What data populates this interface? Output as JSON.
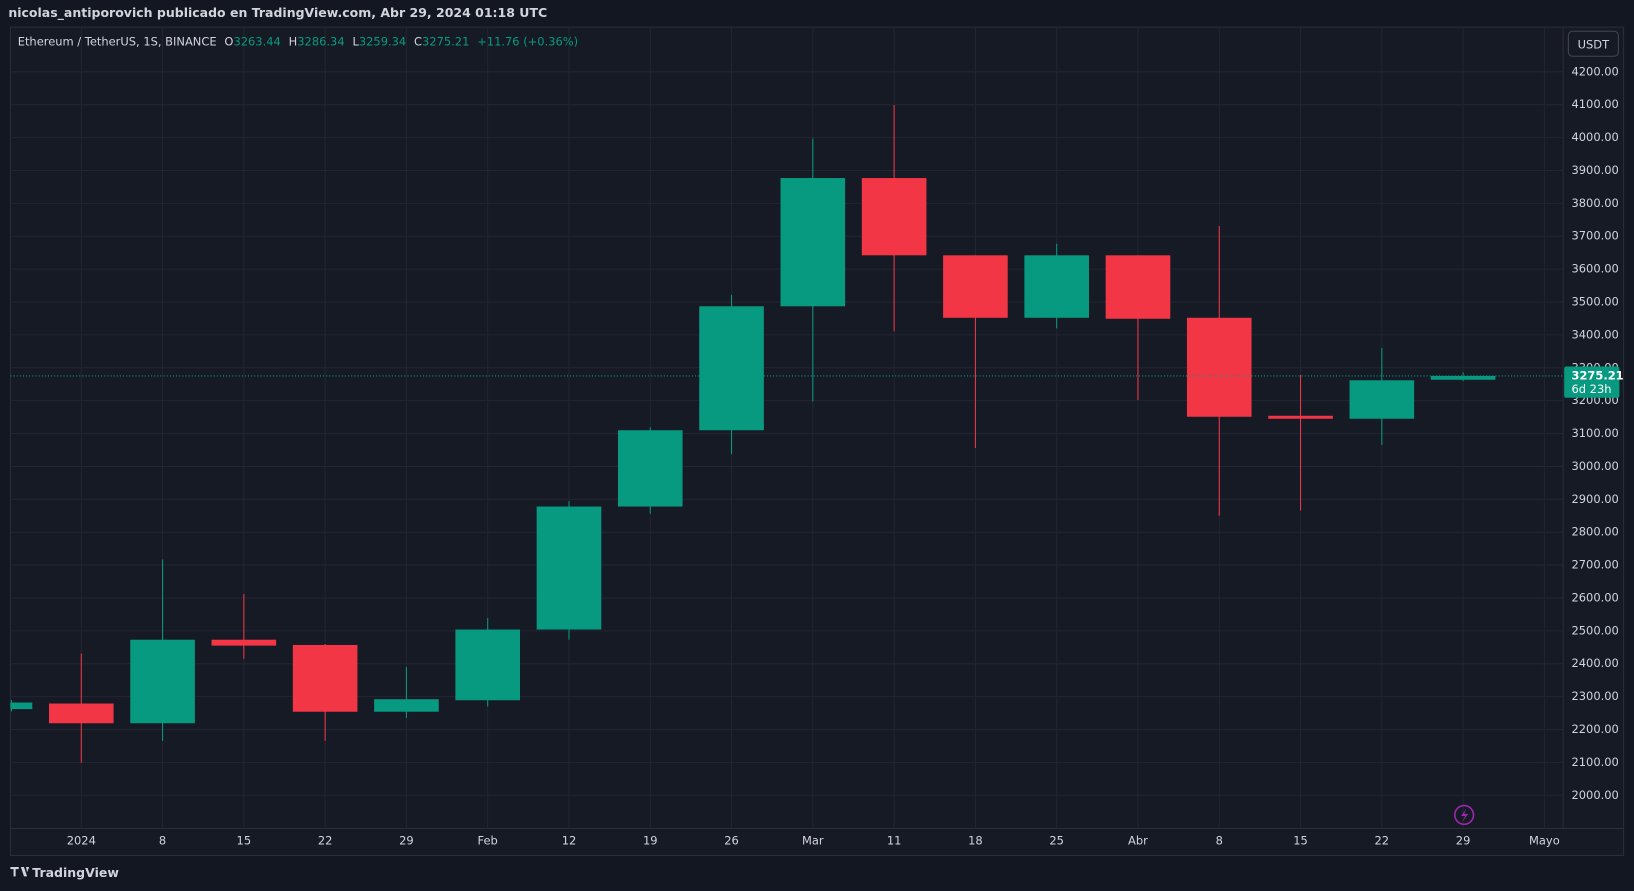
{
  "publisher_line": "nicolas_antiporovich publicado en TradingView.com, Abr 29, 2024 01:18 UTC",
  "brand": "TradingView",
  "chart_data": {
    "type": "candlestick",
    "title": "Ethereum / TetherUS, 1S, BINANCE",
    "legend": {
      "open_label": "O",
      "open": 3263.44,
      "high_label": "H",
      "high": 3286.34,
      "low_label": "L",
      "low": 3259.34,
      "close_label": "C",
      "close": 3275.21,
      "change": "+11.76 (+0.36%)"
    },
    "currency": "USDT",
    "last_price": 3275.21,
    "countdown": "6d 23h",
    "categories": [
      null,
      "2024",
      "8",
      "15",
      "22",
      "29",
      "Feb",
      "12",
      "19",
      "26",
      "Mar",
      "11",
      "18",
      "25",
      "Abr",
      "8",
      "15",
      "22",
      "29",
      "Mayo"
    ],
    "open": [
      2262,
      2279,
      2219,
      2473,
      2457,
      2254,
      2289,
      2504,
      2878,
      3110,
      3487,
      3877,
      3642,
      3452,
      3642,
      3452,
      3154,
      3145,
      3263.44,
      null
    ],
    "high": [
      2290,
      2431,
      2717,
      2612,
      2460,
      2390,
      2539,
      2894,
      3119,
      3522,
      3997,
      4099,
      3642,
      3677,
      3642,
      3731,
      3278,
      3360,
      3286.34,
      null
    ],
    "low": [
      2255,
      2099,
      2165,
      2415,
      2165,
      2235,
      2270,
      2473,
      2856,
      3037,
      3198,
      3411,
      3056,
      3420,
      3202,
      2850,
      2866,
      3065,
      3259.34,
      null
    ],
    "close": [
      2282,
      2219,
      2473,
      2455,
      2254,
      2292,
      2504,
      2878,
      3110,
      3487,
      3877,
      3642,
      3452,
      3642,
      3449,
      3151,
      3145,
      3262,
      3275.21,
      null
    ],
    "up_color": "#089981",
    "down_color": "#f23645",
    "ylim": [
      1899,
      4336
    ],
    "yticks": [
      {
        "value": 2000,
        "label": "2000.00"
      },
      {
        "value": 2100,
        "label": "2100.00"
      },
      {
        "value": 2200,
        "label": "2200.00"
      },
      {
        "value": 2300,
        "label": "2300.00"
      },
      {
        "value": 2400,
        "label": "2400.00"
      },
      {
        "value": 2500,
        "label": "2500.00"
      },
      {
        "value": 2600,
        "label": "2600.00"
      },
      {
        "value": 2700,
        "label": "2700.00"
      },
      {
        "value": 2800,
        "label": "2800.00"
      },
      {
        "value": 2900,
        "label": "2900.00"
      },
      {
        "value": 3000,
        "label": "3000.00"
      },
      {
        "value": 3100,
        "label": "3100.00"
      },
      {
        "value": 3200,
        "label": "3200.00"
      },
      {
        "value": 3300,
        "label": "3300.00"
      },
      {
        "value": 3400,
        "label": "3400.00"
      },
      {
        "value": 3500,
        "label": "3500.00"
      },
      {
        "value": 3600,
        "label": "3600.00"
      },
      {
        "value": 3700,
        "label": "3700.00"
      },
      {
        "value": 3800,
        "label": "3800.00"
      },
      {
        "value": 3900,
        "label": "3900.00"
      },
      {
        "value": 4000,
        "label": "4000.00"
      },
      {
        "value": 4100,
        "label": "4100.00"
      },
      {
        "value": 4200,
        "label": "4200.00"
      }
    ],
    "grid": true
  }
}
